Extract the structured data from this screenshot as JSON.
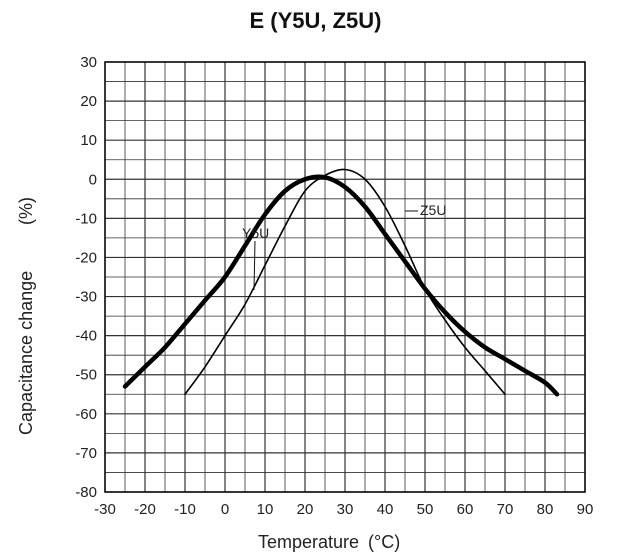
{
  "chart_data": {
    "type": "line",
    "title": "E (Y5U, Z5U)",
    "xlabel": "Temperature",
    "xunit": "(°C)",
    "ylabel": "Capacitance change",
    "yunit": "(%)",
    "xlim": [
      -30,
      90
    ],
    "ylim": [
      -80,
      30
    ],
    "x_ticks": [
      "-30",
      "-20",
      "-10",
      "0",
      "10",
      "20",
      "30",
      "40",
      "50",
      "60",
      "70",
      "80",
      "90"
    ],
    "y_ticks": [
      "30",
      "20",
      "10",
      "0",
      "-10",
      "-20",
      "-30",
      "-40",
      "-50",
      "-60",
      "-70",
      "-80"
    ],
    "grid": true,
    "series": [
      {
        "name": "Y5U",
        "color": "#000000",
        "style": "thick",
        "x": [
          -25,
          -20,
          -15,
          -10,
          -5,
          0,
          5,
          10,
          15,
          20,
          25,
          30,
          35,
          40,
          45,
          50,
          55,
          60,
          65,
          70,
          75,
          80,
          83
        ],
        "y": [
          -53,
          -48,
          -43,
          -37,
          -31,
          -25,
          -17,
          -9,
          -3,
          0,
          0.5,
          -2,
          -7,
          -14,
          -21,
          -28,
          -34,
          -39,
          -43,
          -46,
          -49,
          -52,
          -55
        ]
      },
      {
        "name": "Z5U",
        "color": "#000000",
        "style": "thin",
        "x": [
          -10,
          -5,
          0,
          5,
          10,
          15,
          20,
          25,
          30,
          35,
          40,
          45,
          50,
          55,
          60,
          65,
          70
        ],
        "y": [
          -55,
          -48,
          -40,
          -32,
          -22,
          -12,
          -3,
          1,
          2.5,
          0,
          -7,
          -17,
          -28,
          -36,
          -43,
          -49,
          -55
        ]
      }
    ]
  }
}
